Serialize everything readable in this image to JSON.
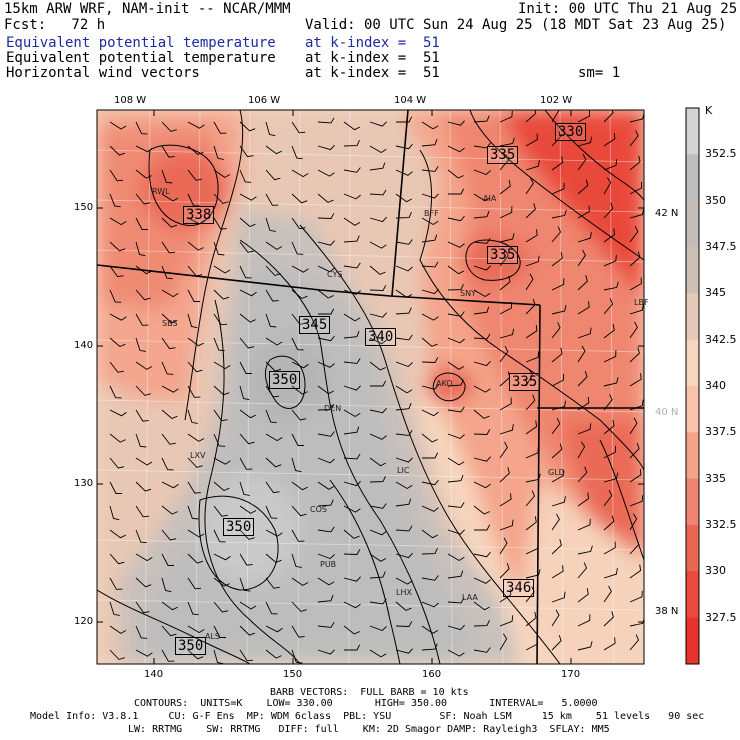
{
  "header": {
    "title": "15km ARW WRF, NAM-init -- NCAR/MMM",
    "init": "Init: 00 UTC Thu 21 Aug 25",
    "fcst": "Fcst:   72 h",
    "valid": "Valid: 00 UTC Sun 24 Aug 25 (18 MDT Sat 23 Aug 25)",
    "fields": [
      {
        "name": "Equivalent potential temperature",
        "level": "at k-index =  51",
        "color": "#1d2aa0"
      },
      {
        "name": "Equivalent potential temperature",
        "level": "at k-index =  51",
        "color": "#000000"
      },
      {
        "name": "Horizontal wind vectors",
        "level": "at k-index =  51",
        "color": "#000000"
      }
    ],
    "smoothing": "sm= 1"
  },
  "axes": {
    "top_labels": [
      "108 W",
      "106 W",
      "104 W",
      "102 W"
    ],
    "bottom_labels": [
      "140",
      "150",
      "160",
      "170"
    ],
    "left_labels": [
      "150",
      "140",
      "130",
      "120"
    ],
    "right_labels": [
      {
        "text": "42 N",
        "color": "#000000"
      },
      {
        "text": "40 N",
        "color": "#b0b0b0"
      },
      {
        "text": "38 N",
        "color": "#000000"
      }
    ]
  },
  "colorbar": {
    "unit": "K",
    "labels": [
      "352.5",
      "350",
      "347.5",
      "345",
      "342.5",
      "340",
      "337.5",
      "335",
      "332.5",
      "330",
      "327.5"
    ],
    "colors": [
      "#d4d4d4",
      "#bdbdbd",
      "#c3bcb7",
      "#cdbfb3",
      "#e3cab8",
      "#f6d6be",
      "#f8c3aa",
      "#f5a48c",
      "#ef8470",
      "#ea6753",
      "#e94a3c",
      "#e8332c"
    ]
  },
  "contour_labels": [
    "330",
    "335",
    "335",
    "338",
    "345",
    "340",
    "350",
    "335",
    "350",
    "346",
    "350"
  ],
  "stations": [
    "RWL",
    "BFF",
    "AIA",
    "CYS",
    "SNY",
    "SBS",
    "AKO",
    "DEN",
    "LIC",
    "LXV",
    "GLD",
    "COS",
    "PUB",
    "LHX",
    "LAA",
    "ALS",
    "LBF"
  ],
  "footer": {
    "line1": "BARB VECTORS:  FULL BARB = 10 kts",
    "line2": "CONTOURS:  UNITS=K    LOW= 330.00       HIGH= 350.00       INTERVAL=   5.0000",
    "line3": "Model Info: V3.8.1     CU: G-F Ens  MP: WDM 6class  PBL: YSU        SF: Noah LSM     15 km    51 levels   90 sec",
    "line4": "LW: RRTMG    SW: RRTMG   DIFF: full    KM: 2D Smagor DAMP: Rayleigh3  SFLAY: MM5"
  }
}
